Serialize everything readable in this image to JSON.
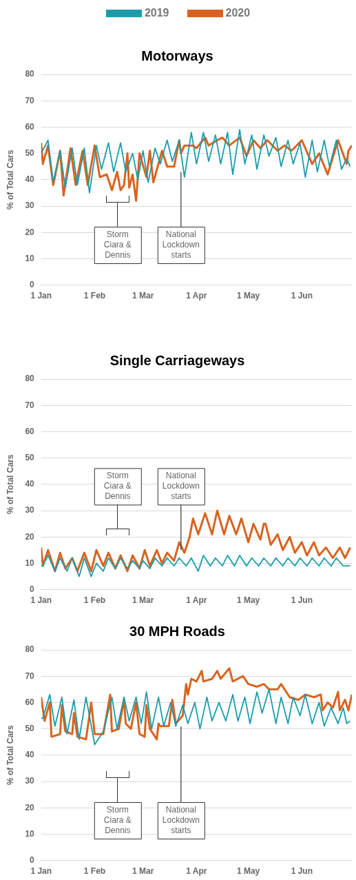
{
  "chart_data": [
    {
      "type": "line",
      "title": "Motorways",
      "ylabel": "% of Total Cars",
      "legend": "top",
      "grid": "y",
      "marker": "none",
      "line_style": "solid",
      "xlim": [
        "--01-01",
        "--06-30"
      ],
      "xticks": [
        {
          "value": "--01-01",
          "label": "1 Jan"
        },
        {
          "value": "--02-01",
          "label": "1 Feb"
        },
        {
          "value": "--03-01",
          "label": "1 Mar"
        },
        {
          "value": "--04-01",
          "label": "1 Apr"
        },
        {
          "value": "--05-01",
          "label": "1 May"
        },
        {
          "value": "--06-01",
          "label": "1 Jun"
        }
      ],
      "ylim": [
        0,
        80
      ],
      "yticks": [
        0,
        10,
        20,
        30,
        40,
        50,
        60,
        70,
        80
      ],
      "series": [
        {
          "name": "2019",
          "color": "#1a9cac",
          "x": [
            "--01-01",
            "--01-05",
            "--01-08",
            "--01-12",
            "--01-15",
            "--01-19",
            "--01-22",
            "--01-26",
            "--01-29",
            "--02-02",
            "--02-05",
            "--02-09",
            "--02-12",
            "--02-16",
            "--02-19",
            "--02-23",
            "--02-26",
            "--03-01",
            "--03-04",
            "--03-08",
            "--03-11",
            "--03-15",
            "--03-18",
            "--03-22",
            "--03-25",
            "--03-29",
            "--04-01",
            "--04-05",
            "--04-08",
            "--04-12",
            "--04-15",
            "--04-19",
            "--04-22",
            "--04-26",
            "--04-29",
            "--05-03",
            "--05-06",
            "--05-10",
            "--05-13",
            "--05-17",
            "--05-20",
            "--05-24",
            "--05-27",
            "--05-31",
            "--06-03",
            "--06-07",
            "--06-10",
            "--06-14",
            "--06-17",
            "--06-21",
            "--06-24",
            "--06-27",
            "--06-29"
          ],
          "values": [
            50,
            55,
            39,
            51,
            37,
            52,
            38,
            52,
            35,
            53,
            44,
            54,
            43,
            54,
            43,
            50,
            40,
            51,
            39,
            52,
            46,
            55,
            47,
            55,
            41,
            58,
            46,
            58,
            47,
            57,
            46,
            58,
            42,
            59,
            46,
            57,
            44,
            57,
            49,
            56,
            45,
            55,
            46,
            54,
            41,
            55,
            43,
            55,
            45,
            55,
            44,
            48,
            45
          ]
        },
        {
          "name": "2020",
          "color": "#d9631e",
          "x": [
            "--01-01",
            "--01-02",
            "--01-05",
            "--01-08",
            "--01-12",
            "--01-14",
            "--01-18",
            "--01-21",
            "--01-25",
            "--01-28",
            "--02-01",
            "--02-04",
            "--02-08",
            "--02-11",
            "--02-14",
            "--02-16",
            "--02-18",
            "--02-20",
            "--02-21",
            "--02-23",
            "--02-25",
            "--02-27",
            "--03-03",
            "--03-05",
            "--03-07",
            "--03-12",
            "--03-15",
            "--03-19",
            "--03-22",
            "--03-23",
            "--03-25",
            "--03-30",
            "--04-01",
            "--04-06",
            "--04-08",
            "--04-13",
            "--04-16",
            "--04-20",
            "--04-26",
            "--04-30",
            "--05-04",
            "--05-08",
            "--05-12",
            "--05-18",
            "--05-22",
            "--05-26",
            "--06-01",
            "--06-07",
            "--06-11",
            "--06-16",
            "--06-22",
            "--06-27",
            "--06-28",
            "--06-30"
          ],
          "values": [
            54,
            46,
            53,
            38,
            51,
            34,
            52,
            38,
            51,
            38,
            53,
            41,
            42,
            36,
            43,
            36,
            38,
            50,
            37,
            42,
            32,
            50,
            41,
            51,
            39,
            51,
            45,
            45,
            55,
            50,
            53,
            53,
            52,
            56,
            53,
            55,
            56,
            53,
            56,
            49,
            55,
            52,
            55,
            51,
            53,
            51,
            55,
            46,
            50,
            42,
            55,
            46,
            51,
            53
          ]
        }
      ],
      "annotations": [
        "Storm Ciara & Dennis",
        {
          "text": "National Lockdown starts",
          "x": "--03-23",
          "y": 44
        }
      ]
    },
    {
      "type": "line",
      "title": "Single Carriageways",
      "ylabel": "% of Total Cars",
      "grid": "y",
      "marker": "none",
      "line_style": "solid",
      "xlim": [
        "--01-01",
        "--06-30"
      ],
      "xticks": [
        {
          "value": "--01-01",
          "label": "1 Jan"
        },
        {
          "value": "--02-01",
          "label": "1 Feb"
        },
        {
          "value": "--03-01",
          "label": "1 Mar"
        },
        {
          "value": "--04-01",
          "label": "1 Apr"
        },
        {
          "value": "--05-01",
          "label": "1 May"
        },
        {
          "value": "--06-01",
          "label": "1 Jun"
        }
      ],
      "ylim": [
        0,
        80
      ],
      "yticks": [
        0,
        10,
        20,
        30,
        40,
        50,
        60,
        70,
        80
      ],
      "series": [
        {
          "name": "2019",
          "color": "#1a9cac",
          "x": [
            "--01-01",
            "--01-02",
            "--01-05",
            "--01-09",
            "--01-12",
            "--01-16",
            "--01-19",
            "--01-23",
            "--01-26",
            "--01-30",
            "--02-02",
            "--02-06",
            "--02-09",
            "--02-13",
            "--02-16",
            "--02-20",
            "--02-23",
            "--02-27",
            "--03-01",
            "--03-05",
            "--03-08",
            "--03-12",
            "--03-15",
            "--03-19",
            "--03-22",
            "--03-26",
            "--03-29",
            "--04-02",
            "--04-05",
            "--04-09",
            "--04-12",
            "--04-16",
            "--04-19",
            "--04-23",
            "--04-26",
            "--04-30",
            "--05-03",
            "--05-07",
            "--05-10",
            "--05-14",
            "--05-17",
            "--05-21",
            "--05-24",
            "--05-28",
            "--05-31",
            "--06-04",
            "--06-07",
            "--06-11",
            "--06-14",
            "--06-18",
            "--06-21",
            "--06-25",
            "--06-29"
          ],
          "values": [
            9,
            9,
            13,
            7,
            12,
            7,
            12,
            5,
            12,
            5,
            10,
            7,
            12,
            8,
            12,
            8,
            11,
            8,
            11,
            8,
            12,
            9,
            12,
            9,
            12,
            9,
            12,
            7,
            13,
            9,
            12,
            9,
            13,
            9,
            13,
            9,
            12,
            9,
            12,
            9,
            12,
            9,
            12,
            9,
            12,
            9,
            12,
            9,
            12,
            9,
            12,
            9,
            9
          ]
        },
        {
          "name": "2020",
          "color": "#d9631e",
          "x": [
            "--01-01",
            "--01-02",
            "--01-05",
            "--01-09",
            "--01-12",
            "--01-15",
            "--01-19",
            "--01-22",
            "--01-26",
            "--01-30",
            "--02-02",
            "--02-06",
            "--02-09",
            "--02-13",
            "--02-16",
            "--02-20",
            "--02-23",
            "--02-27",
            "--03-02",
            "--03-05",
            "--03-09",
            "--03-12",
            "--03-15",
            "--03-19",
            "--03-22",
            "--03-25",
            "--03-28",
            "--03-30",
            "--04-02",
            "--04-06",
            "--04-10",
            "--04-13",
            "--04-17",
            "--04-20",
            "--04-24",
            "--04-27",
            "--05-01",
            "--05-04",
            "--05-08",
            "--05-10",
            "--05-11",
            "--05-14",
            "--05-18",
            "--05-21",
            "--05-25",
            "--05-28",
            "--06-01",
            "--06-04",
            "--06-08",
            "--06-11",
            "--06-15",
            "--06-19",
            "--06-23",
            "--06-26",
            "--06-29"
          ],
          "values": [
            16,
            9,
            15,
            7,
            14,
            8,
            12,
            7,
            14,
            7,
            15,
            9,
            14,
            8,
            13,
            7,
            13,
            8,
            15,
            9,
            15,
            10,
            14,
            11,
            18,
            14,
            20,
            27,
            21,
            29,
            21,
            30,
            21,
            28,
            21,
            27,
            18,
            25,
            19,
            25,
            25,
            17,
            21,
            15,
            20,
            14,
            18,
            13,
            18,
            13,
            16,
            12,
            16,
            12,
            16
          ]
        }
      ],
      "annotations": [
        "Storm Ciara & Dennis",
        {
          "text": "National Lockdown starts",
          "x": "--03-23",
          "y": 14
        }
      ]
    },
    {
      "type": "line",
      "title": "30 MPH Roads",
      "ylabel": "% of Total Cars",
      "grid": "y",
      "marker": "none",
      "line_style": "solid",
      "xlim": [
        "--01-01",
        "--06-30"
      ],
      "xticks": [
        {
          "value": "--01-01",
          "label": "1 Jan"
        },
        {
          "value": "--02-01",
          "label": "1 Feb"
        },
        {
          "value": "--03-01",
          "label": "1 Mar"
        },
        {
          "value": "--04-01",
          "label": "1 Apr"
        },
        {
          "value": "--05-01",
          "label": "1 May"
        },
        {
          "value": "--06-01",
          "label": "1 Jun"
        }
      ],
      "ylim": [
        0,
        80
      ],
      "yticks": [
        0,
        10,
        20,
        30,
        40,
        50,
        60,
        70,
        80
      ],
      "series": [
        {
          "name": "2019",
          "color": "#1a9cac",
          "x": [
            "--01-01",
            "--01-02",
            "--01-06",
            "--01-09",
            "--01-13",
            "--01-16",
            "--01-20",
            "--01-23",
            "--01-27",
            "--02-01",
            "--02-06",
            "--02-11",
            "--02-14",
            "--02-18",
            "--02-21",
            "--02-25",
            "--02-28",
            "--03-03",
            "--03-06",
            "--03-10",
            "--03-13",
            "--03-17",
            "--03-20",
            "--03-24",
            "--03-27",
            "--03-31",
            "--04-03",
            "--04-07",
            "--04-10",
            "--04-14",
            "--04-18",
            "--04-22",
            "--04-25",
            "--04-29",
            "--05-02",
            "--05-06",
            "--05-09",
            "--05-13",
            "--05-17",
            "--05-20",
            "--05-24",
            "--05-27",
            "--05-31",
            "--06-03",
            "--06-07",
            "--06-11",
            "--06-14",
            "--06-18",
            "--06-22",
            "--06-25",
            "--06-27",
            "--06-29"
          ],
          "values": [
            54,
            54,
            63,
            51,
            62,
            48,
            61,
            46,
            62,
            44,
            49,
            62,
            50,
            62,
            53,
            62,
            52,
            64,
            50,
            62,
            51,
            60,
            51,
            59,
            52,
            60,
            50,
            62,
            53,
            60,
            53,
            63,
            53,
            62,
            52,
            64,
            56,
            65,
            52,
            62,
            52,
            62,
            55,
            63,
            52,
            60,
            51,
            58,
            52,
            58,
            52,
            53
          ]
        },
        {
          "name": "2020",
          "color": "#d9631e",
          "x": [
            "--01-01",
            "--01-03",
            "--01-06",
            "--01-07",
            "--01-12",
            "--01-13",
            "--01-15",
            "--01-19",
            "--01-20",
            "--01-22",
            "--01-27",
            "--01-30",
            "--02-01",
            "--02-06",
            "--02-10",
            "--02-11",
            "--02-15",
            "--02-18",
            "--02-19",
            "--02-22",
            "--02-25",
            "--02-27",
            "--03-02",
            "--03-03",
            "--03-05",
            "--03-09",
            "--03-10",
            "--03-11",
            "--03-16",
            "--03-18",
            "--03-20",
            "--03-24",
            "--03-26",
            "--03-27",
            "--03-29",
            "--04-01",
            "--04-04",
            "--04-05",
            "--04-10",
            "--04-13",
            "--04-15",
            "--04-20",
            "--04-22",
            "--04-28",
            "--05-01",
            "--05-06",
            "--05-10",
            "--05-13",
            "--05-18",
            "--05-20",
            "--05-25",
            "--05-30",
            "--06-03",
            "--06-08",
            "--06-12",
            "--06-13",
            "--06-16",
            "--06-19",
            "--06-22",
            "--06-23",
            "--06-26",
            "--06-28",
            "--06-30"
          ],
          "values": [
            62,
            53,
            60,
            47,
            48,
            59,
            49,
            48,
            56,
            47,
            46,
            60,
            48,
            48,
            63,
            49,
            50,
            61,
            52,
            50,
            60,
            48,
            47,
            59,
            50,
            46,
            52,
            51,
            51,
            61,
            52,
            55,
            67,
            63,
            69,
            68,
            72,
            68,
            69,
            72,
            69,
            73,
            68,
            70,
            67,
            66,
            67,
            65,
            65,
            67,
            62,
            61,
            63,
            62,
            63,
            57,
            60,
            58,
            64,
            57,
            61,
            57,
            63
          ]
        }
      ],
      "annotations": [
        "Storm Ciara & Dennis",
        {
          "text": "National Lockdown starts",
          "x": "--03-23",
          "y": 52
        }
      ]
    }
  ]
}
